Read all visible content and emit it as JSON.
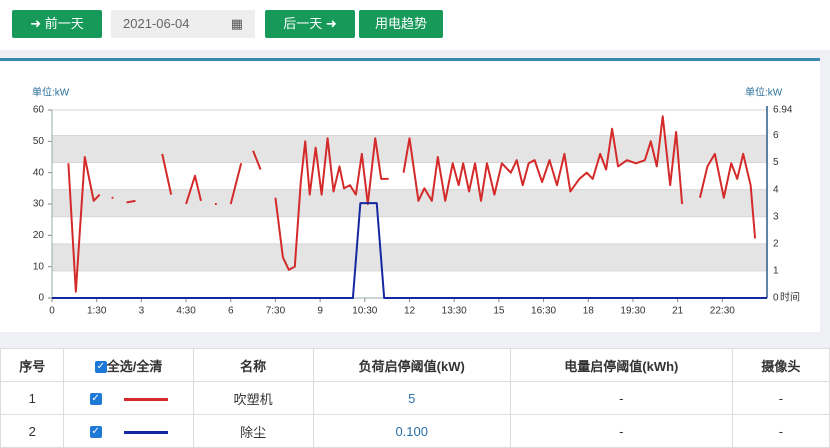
{
  "toolbar": {
    "prev": "前一天",
    "date": "2021-06-04",
    "next": "后一天",
    "trend": "用电趋势"
  },
  "chart_data": {
    "type": "line",
    "y_unit_label": "单位:kW",
    "y2_unit_label": "单位:kW",
    "x_label": "时间",
    "xlim": [
      0,
      24
    ],
    "xticks": [
      0,
      {
        "value": 1.5,
        "label": "1:30"
      },
      3,
      {
        "value": 4.5,
        "label": "4:30"
      },
      6,
      {
        "value": 7.5,
        "label": "7:30"
      },
      9,
      {
        "value": 10.5,
        "label": "10:30"
      },
      12,
      {
        "value": 13.5,
        "label": "13:30"
      },
      15,
      {
        "value": 16.5,
        "label": "16:30"
      },
      18,
      {
        "value": 19.5,
        "label": "19:30"
      },
      21,
      {
        "value": 22.5,
        "label": "22:30"
      }
    ],
    "ylim": [
      0,
      60
    ],
    "yticks": [
      0,
      10,
      20,
      30,
      40,
      50,
      60
    ],
    "y2lim": [
      0,
      6.94
    ],
    "y2ticks": [
      0,
      1,
      2,
      3,
      4,
      5,
      6,
      6.94
    ],
    "bands": true,
    "series": [
      {
        "color": "#d42a2a",
        "x": [
          0.55,
          0.8,
          1.1,
          1.4,
          1.6,
          1.8,
          2.0,
          2.06,
          2.3,
          2.5,
          2.8,
          3.3,
          3.7,
          4.0,
          4.3,
          4.5,
          4.8,
          5.0,
          5.3,
          5.47,
          5.53,
          5.8,
          6.0,
          6.35,
          6.55,
          6.75,
          7.0,
          7.25,
          7.5,
          7.75,
          7.95,
          8.15,
          8.35,
          8.5,
          8.65,
          8.85,
          9.05,
          9.25,
          9.45,
          9.65,
          9.8,
          10.0,
          10.2,
          10.4,
          10.6,
          10.85,
          11.05,
          11.3,
          11.55,
          11.8,
          12.0,
          12.3,
          12.5,
          12.75,
          12.95,
          13.2,
          13.45,
          13.65,
          13.8,
          14.0,
          14.2,
          14.4,
          14.6,
          14.85,
          15.1,
          15.4,
          15.6,
          15.8,
          16.0,
          16.2,
          16.45,
          16.7,
          16.95,
          17.2,
          17.4,
          17.7,
          17.95,
          18.15,
          18.4,
          18.6,
          18.8,
          19.0,
          19.3,
          19.6,
          19.9,
          20.1,
          20.3,
          20.5,
          20.75,
          20.95,
          21.15,
          21.45,
          21.75,
          22.0,
          22.25,
          22.55,
          22.8,
          23.0,
          23.2,
          23.45,
          23.6
        ],
        "values": [
          43,
          2,
          45,
          31,
          33,
          null,
          32,
          32,
          null,
          30.5,
          31,
          null,
          46,
          33,
          null,
          30,
          39,
          31,
          null,
          30,
          30,
          null,
          30,
          43,
          null,
          47,
          41,
          null,
          32,
          13,
          9,
          10,
          37,
          50,
          33,
          48,
          33,
          51,
          34,
          42,
          35,
          36,
          33,
          46,
          30,
          51,
          38,
          38,
          null,
          40,
          51,
          31,
          35,
          31,
          45,
          31,
          43,
          36,
          43,
          34,
          43,
          31,
          43,
          33,
          43,
          40,
          44,
          36,
          43,
          44,
          37,
          44,
          36,
          46,
          34,
          38,
          40,
          38,
          46,
          41,
          54,
          42,
          44,
          43,
          44,
          50,
          42,
          58,
          36,
          53,
          30,
          null,
          32,
          42,
          46,
          32,
          43,
          38,
          46,
          36,
          19
        ]
      },
      {
        "color": "#1428a0",
        "axis": "y2",
        "x": [
          0,
          10.1,
          10.35,
          10.9,
          11.15,
          24
        ],
        "values": [
          0,
          0,
          3.5,
          3.5,
          0,
          0
        ]
      }
    ]
  },
  "table": {
    "headers": [
      "序号",
      "全选/全清",
      "名称",
      "负荷启停阈值(kW)",
      "电量启停阈值(kWh)",
      "摄像头"
    ],
    "rows": [
      {
        "index": "1",
        "name": "吹塑机",
        "load": "5",
        "energy": "-",
        "camera": "-"
      },
      {
        "index": "2",
        "name": "除尘",
        "load": "0.100",
        "energy": "-",
        "camera": "-"
      }
    ]
  }
}
